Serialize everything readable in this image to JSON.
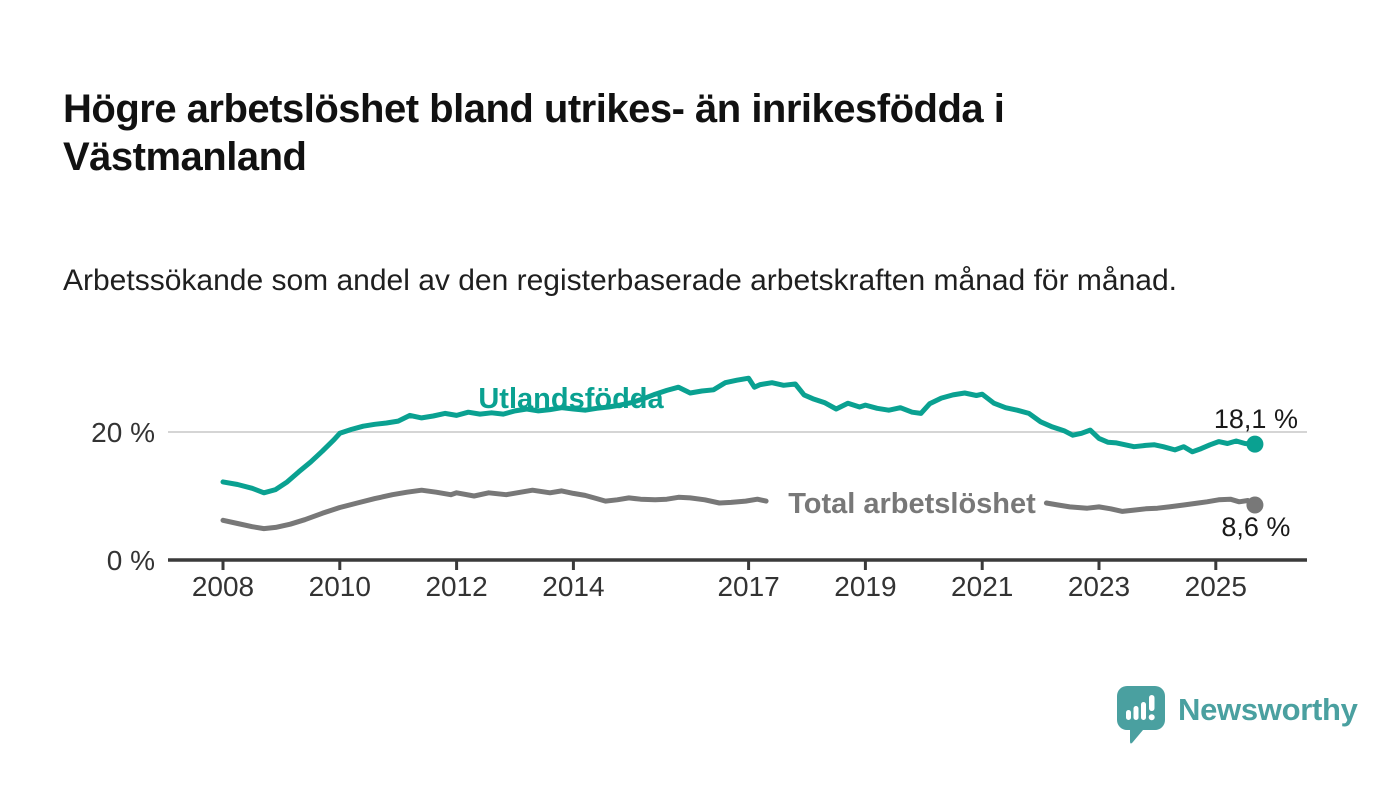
{
  "header": {
    "title": "Högre arbetslöshet bland utrikes- än inrikesfödda i Västmanland",
    "subtitle": "Arbetssökande som andel av den registerbaserade arbetskraften månad för månad."
  },
  "branding": {
    "name": "Newsworthy",
    "logo_icon": "bar-chart-speech-bubble-icon",
    "brand_color": "#4aa0a0"
  },
  "colors": {
    "series_foreign_born": "#0aa191",
    "series_total": "#787878",
    "gridline": "#d5d5d5",
    "axis": "#3a3a3a",
    "tick_label": "#333333",
    "end_label": "#1a1a1a",
    "background": "#ffffff"
  },
  "chart_data": {
    "type": "line",
    "title": "Högre arbetslöshet bland utrikes- än inrikesfödda i Västmanland",
    "subtitle": "Arbetssökande som andel av den registerbaserade arbetskraften månad för månad.",
    "xlabel": "",
    "ylabel": "",
    "grid": "single horizontal gridline at 20 %",
    "legend_position": "inline labels on lines",
    "xlim": [
      2007.1,
      2026.6
    ],
    "ylim": [
      0,
      31
    ],
    "x_ticks": [
      2008,
      2010,
      2012,
      2014,
      2017,
      2019,
      2021,
      2023,
      2025
    ],
    "x_tick_labels": [
      "2008",
      "2010",
      "2012",
      "2014",
      "2017",
      "2019",
      "2021",
      "2023",
      "2025"
    ],
    "y_ticks": [
      {
        "value": 0,
        "label": "0 %"
      },
      {
        "value": 20,
        "label": "20 %"
      }
    ],
    "series": [
      {
        "name": "Total arbetslöshet",
        "color": "#787878",
        "end_value": 8.6,
        "end_label": "8,6 %",
        "label_gap_x": [
          2017.32,
          2022.06
        ],
        "points": [
          [
            2008.0,
            6.2
          ],
          [
            2008.25,
            5.7
          ],
          [
            2008.5,
            5.2
          ],
          [
            2008.7,
            4.9
          ],
          [
            2008.9,
            5.1
          ],
          [
            2009.15,
            5.6
          ],
          [
            2009.4,
            6.3
          ],
          [
            2009.7,
            7.3
          ],
          [
            2010.0,
            8.2
          ],
          [
            2010.3,
            8.9
          ],
          [
            2010.6,
            9.6
          ],
          [
            2010.9,
            10.2
          ],
          [
            2011.15,
            10.6
          ],
          [
            2011.4,
            10.9
          ],
          [
            2011.65,
            10.6
          ],
          [
            2011.9,
            10.2
          ],
          [
            2012.0,
            10.5
          ],
          [
            2012.3,
            10.0
          ],
          [
            2012.55,
            10.5
          ],
          [
            2012.85,
            10.2
          ],
          [
            2013.1,
            10.6
          ],
          [
            2013.3,
            10.9
          ],
          [
            2013.6,
            10.5
          ],
          [
            2013.8,
            10.8
          ],
          [
            2014.0,
            10.4
          ],
          [
            2014.2,
            10.1
          ],
          [
            2014.4,
            9.6
          ],
          [
            2014.55,
            9.2
          ],
          [
            2014.75,
            9.4
          ],
          [
            2014.95,
            9.7
          ],
          [
            2015.15,
            9.5
          ],
          [
            2015.4,
            9.4
          ],
          [
            2015.6,
            9.5
          ],
          [
            2015.8,
            9.8
          ],
          [
            2016.0,
            9.7
          ],
          [
            2016.25,
            9.4
          ],
          [
            2016.5,
            8.9
          ],
          [
            2016.7,
            9.0
          ],
          [
            2016.95,
            9.2
          ],
          [
            2017.15,
            9.5
          ],
          [
            2017.3,
            9.2
          ],
          [
            2017.6,
            8.9
          ],
          [
            2018.0,
            8.9
          ],
          [
            2018.5,
            8.7
          ],
          [
            2019.0,
            8.6
          ],
          [
            2019.5,
            8.5
          ],
          [
            2020.0,
            8.9
          ],
          [
            2020.3,
            10.2
          ],
          [
            2020.6,
            10.4
          ],
          [
            2021.0,
            10.1
          ],
          [
            2021.5,
            9.5
          ],
          [
            2022.1,
            8.9
          ],
          [
            2022.3,
            8.6
          ],
          [
            2022.5,
            8.3
          ],
          [
            2022.8,
            8.1
          ],
          [
            2023.0,
            8.3
          ],
          [
            2023.2,
            8.0
          ],
          [
            2023.4,
            7.6
          ],
          [
            2023.6,
            7.8
          ],
          [
            2023.8,
            8.0
          ],
          [
            2024.0,
            8.1
          ],
          [
            2024.2,
            8.3
          ],
          [
            2024.45,
            8.6
          ],
          [
            2024.7,
            8.9
          ],
          [
            2024.85,
            9.1
          ],
          [
            2025.05,
            9.4
          ],
          [
            2025.25,
            9.5
          ],
          [
            2025.4,
            9.1
          ],
          [
            2025.55,
            9.3
          ],
          [
            2025.67,
            8.6
          ]
        ]
      },
      {
        "name": "Utlandsfödda",
        "color": "#0aa191",
        "end_value": 18.1,
        "end_label": "18,1 %",
        "points": [
          [
            2008.0,
            12.2
          ],
          [
            2008.25,
            11.8
          ],
          [
            2008.5,
            11.2
          ],
          [
            2008.7,
            10.5
          ],
          [
            2008.9,
            11.0
          ],
          [
            2009.1,
            12.2
          ],
          [
            2009.3,
            13.8
          ],
          [
            2009.5,
            15.3
          ],
          [
            2009.7,
            17.0
          ],
          [
            2009.9,
            18.8
          ],
          [
            2010.0,
            19.8
          ],
          [
            2010.2,
            20.4
          ],
          [
            2010.4,
            20.9
          ],
          [
            2010.6,
            21.2
          ],
          [
            2010.8,
            21.4
          ],
          [
            2011.0,
            21.7
          ],
          [
            2011.2,
            22.6
          ],
          [
            2011.4,
            22.2
          ],
          [
            2011.6,
            22.5
          ],
          [
            2011.8,
            22.9
          ],
          [
            2012.0,
            22.6
          ],
          [
            2012.2,
            23.1
          ],
          [
            2012.4,
            22.8
          ],
          [
            2012.6,
            23.0
          ],
          [
            2012.8,
            22.8
          ],
          [
            2013.0,
            23.3
          ],
          [
            2013.2,
            23.6
          ],
          [
            2013.4,
            23.3
          ],
          [
            2013.6,
            23.5
          ],
          [
            2013.8,
            23.8
          ],
          [
            2014.0,
            23.6
          ],
          [
            2014.2,
            23.4
          ],
          [
            2014.4,
            23.7
          ],
          [
            2014.6,
            23.9
          ],
          [
            2014.8,
            24.2
          ],
          [
            2015.0,
            24.6
          ],
          [
            2015.2,
            25.2
          ],
          [
            2015.4,
            25.9
          ],
          [
            2015.6,
            26.5
          ],
          [
            2015.8,
            27.0
          ],
          [
            2016.0,
            26.1
          ],
          [
            2016.2,
            26.4
          ],
          [
            2016.4,
            26.6
          ],
          [
            2016.6,
            27.7
          ],
          [
            2016.8,
            28.1
          ],
          [
            2017.0,
            28.4
          ],
          [
            2017.1,
            27.0
          ],
          [
            2017.2,
            27.4
          ],
          [
            2017.4,
            27.7
          ],
          [
            2017.6,
            27.3
          ],
          [
            2017.8,
            27.5
          ],
          [
            2017.95,
            25.8
          ],
          [
            2018.1,
            25.2
          ],
          [
            2018.3,
            24.6
          ],
          [
            2018.5,
            23.6
          ],
          [
            2018.7,
            24.5
          ],
          [
            2018.9,
            23.9
          ],
          [
            2019.0,
            24.2
          ],
          [
            2019.2,
            23.7
          ],
          [
            2019.4,
            23.4
          ],
          [
            2019.6,
            23.8
          ],
          [
            2019.8,
            23.1
          ],
          [
            2019.95,
            22.9
          ],
          [
            2020.1,
            24.4
          ],
          [
            2020.3,
            25.3
          ],
          [
            2020.5,
            25.8
          ],
          [
            2020.7,
            26.1
          ],
          [
            2020.9,
            25.7
          ],
          [
            2021.0,
            25.9
          ],
          [
            2021.2,
            24.5
          ],
          [
            2021.4,
            23.8
          ],
          [
            2021.6,
            23.4
          ],
          [
            2021.8,
            22.9
          ],
          [
            2022.0,
            21.6
          ],
          [
            2022.2,
            20.8
          ],
          [
            2022.4,
            20.2
          ],
          [
            2022.55,
            19.5
          ],
          [
            2022.7,
            19.8
          ],
          [
            2022.85,
            20.3
          ],
          [
            2023.0,
            19.0
          ],
          [
            2023.15,
            18.4
          ],
          [
            2023.3,
            18.3
          ],
          [
            2023.45,
            18.0
          ],
          [
            2023.6,
            17.7
          ],
          [
            2023.8,
            17.9
          ],
          [
            2023.95,
            18.0
          ],
          [
            2024.1,
            17.7
          ],
          [
            2024.3,
            17.2
          ],
          [
            2024.45,
            17.7
          ],
          [
            2024.6,
            16.9
          ],
          [
            2024.75,
            17.4
          ],
          [
            2024.9,
            18.0
          ],
          [
            2025.05,
            18.5
          ],
          [
            2025.2,
            18.2
          ],
          [
            2025.35,
            18.6
          ],
          [
            2025.5,
            18.2
          ],
          [
            2025.67,
            18.1
          ]
        ]
      }
    ]
  }
}
